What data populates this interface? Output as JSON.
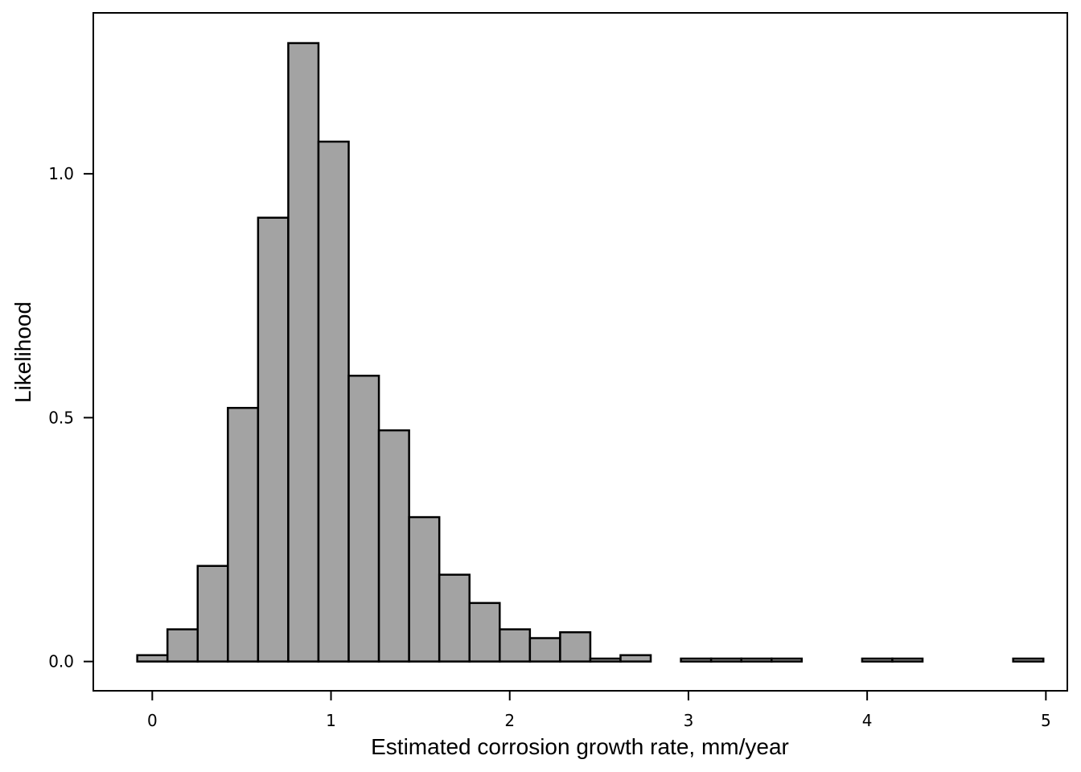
{
  "chart_data": {
    "type": "bar",
    "subtype": "histogram",
    "title": "",
    "xlabel": "Estimated corrosion growth rate, mm/year",
    "ylabel": "Likelihood",
    "xlim": [
      -0.33,
      5.12
    ],
    "ylim": [
      -0.06,
      1.33
    ],
    "xticks": [
      0,
      1,
      2,
      3,
      4,
      5
    ],
    "xtick_labels": [
      "0",
      "1",
      "2",
      "3",
      "4",
      "5"
    ],
    "yticks": [
      0.0,
      0.5,
      1.0
    ],
    "ytick_labels": [
      "0.0",
      "0.5",
      "1.0"
    ],
    "grid": false,
    "legend": "none",
    "bar_fill": "#a3a3a3",
    "bar_stroke": "#000000",
    "bins": [
      {
        "x0": -0.084,
        "x1": 0.085,
        "value": 0.013
      },
      {
        "x0": 0.085,
        "x1": 0.254,
        "value": 0.066
      },
      {
        "x0": 0.254,
        "x1": 0.423,
        "value": 0.196
      },
      {
        "x0": 0.423,
        "x1": 0.592,
        "value": 0.52
      },
      {
        "x0": 0.592,
        "x1": 0.761,
        "value": 0.91
      },
      {
        "x0": 0.761,
        "x1": 0.93,
        "value": 1.268
      },
      {
        "x0": 0.93,
        "x1": 1.099,
        "value": 1.066
      },
      {
        "x0": 1.099,
        "x1": 1.268,
        "value": 0.586
      },
      {
        "x0": 1.268,
        "x1": 1.437,
        "value": 0.474
      },
      {
        "x0": 1.437,
        "x1": 1.606,
        "value": 0.296
      },
      {
        "x0": 1.606,
        "x1": 1.775,
        "value": 0.178
      },
      {
        "x0": 1.775,
        "x1": 1.944,
        "value": 0.12
      },
      {
        "x0": 1.944,
        "x1": 2.113,
        "value": 0.066
      },
      {
        "x0": 2.113,
        "x1": 2.282,
        "value": 0.048
      },
      {
        "x0": 2.282,
        "x1": 2.451,
        "value": 0.06
      },
      {
        "x0": 2.451,
        "x1": 2.62,
        "value": 0.006
      },
      {
        "x0": 2.62,
        "x1": 2.789,
        "value": 0.013
      },
      {
        "x0": 2.789,
        "x1": 2.958,
        "value": 0.0
      },
      {
        "x0": 2.958,
        "x1": 3.127,
        "value": 0.006
      },
      {
        "x0": 3.127,
        "x1": 3.296,
        "value": 0.006
      },
      {
        "x0": 3.296,
        "x1": 3.465,
        "value": 0.006
      },
      {
        "x0": 3.465,
        "x1": 3.634,
        "value": 0.006
      },
      {
        "x0": 3.634,
        "x1": 3.803,
        "value": 0.0
      },
      {
        "x0": 3.803,
        "x1": 3.972,
        "value": 0.0
      },
      {
        "x0": 3.972,
        "x1": 4.141,
        "value": 0.006
      },
      {
        "x0": 4.141,
        "x1": 4.31,
        "value": 0.006
      },
      {
        "x0": 4.31,
        "x1": 4.479,
        "value": 0.0
      },
      {
        "x0": 4.479,
        "x1": 4.648,
        "value": 0.0
      },
      {
        "x0": 4.648,
        "x1": 4.817,
        "value": 0.0
      },
      {
        "x0": 4.817,
        "x1": 4.986,
        "value": 0.006
      }
    ]
  }
}
